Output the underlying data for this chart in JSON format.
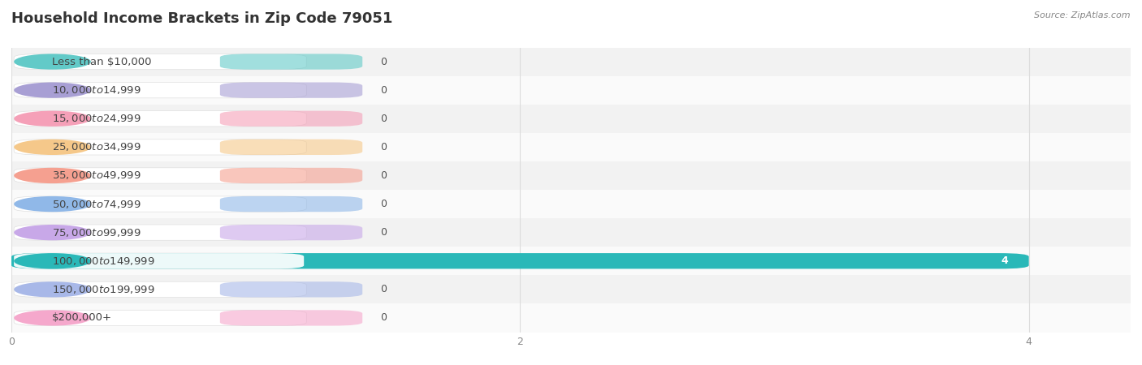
{
  "title": "Household Income Brackets in Zip Code 79051",
  "source": "Source: ZipAtlas.com",
  "categories": [
    "Less than $10,000",
    "$10,000 to $14,999",
    "$15,000 to $24,999",
    "$25,000 to $34,999",
    "$35,000 to $49,999",
    "$50,000 to $74,999",
    "$75,000 to $99,999",
    "$100,000 to $149,999",
    "$150,000 to $199,999",
    "$200,000+"
  ],
  "values": [
    0,
    0,
    0,
    0,
    0,
    0,
    0,
    4,
    0,
    0
  ],
  "bar_colors": [
    "#62cac8",
    "#a89fd4",
    "#f5a0b8",
    "#f5c88a",
    "#f5a090",
    "#90b8e8",
    "#c8a8e8",
    "#2ab8b8",
    "#a8b8e8",
    "#f5a8cc"
  ],
  "background_color": "#ffffff",
  "row_bg_even": "#f2f2f2",
  "row_bg_odd": "#fafafa",
  "grid_color": "#dddddd",
  "xlim": [
    0,
    4.4
  ],
  "xticks": [
    0,
    2,
    4
  ],
  "title_fontsize": 13,
  "label_fontsize": 9.5,
  "value_label_fontsize": 9,
  "source_fontsize": 8
}
